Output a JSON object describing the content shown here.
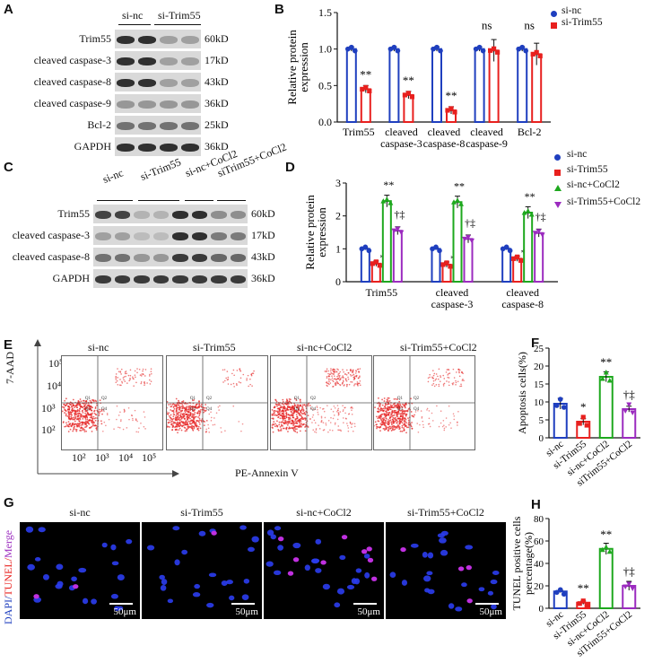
{
  "panels": {
    "A": "A",
    "B": "B",
    "C": "C",
    "D": "D",
    "E": "E",
    "F": "F",
    "G": "G",
    "H": "H"
  },
  "panel_a": {
    "groups": [
      "si-nc",
      "si-Trim55"
    ],
    "rows": [
      {
        "label": "Trim55",
        "kd": "60kD"
      },
      {
        "label": "cleaved caspase-3",
        "kd": "17kD"
      },
      {
        "label": "cleaved caspase-8",
        "kd": "43kD"
      },
      {
        "label": "cleaved caspase-9",
        "kd": "36kD"
      },
      {
        "label": "Bcl-2",
        "kd": "25kD"
      },
      {
        "label": "GAPDH",
        "kd": "36kD"
      }
    ]
  },
  "panel_c": {
    "groups": [
      "si-nc",
      "si-Trim55",
      "si-nc+CoCl2",
      "siTrim55+CoCl2"
    ],
    "rows": [
      {
        "label": "Trim55",
        "kd": "60kD"
      },
      {
        "label": "cleaved caspase-3",
        "kd": "17kD"
      },
      {
        "label": "cleaved caspase-8",
        "kd": "43kD"
      },
      {
        "label": "GAPDH",
        "kd": "36kD"
      }
    ]
  },
  "panel_e": {
    "titles": [
      "si-nc",
      "si-Trim55",
      "si-nc+CoCl2",
      "si-Trim55+CoCl2"
    ],
    "ylabel": "7-AAD",
    "xlabel": "PE-Annexin V",
    "yticks": [
      "10⁵",
      "10⁴",
      "10³",
      "10²"
    ],
    "xticks": [
      "10²",
      "10³",
      "10⁴",
      "10⁵"
    ],
    "quadrants": [
      "Q1",
      "Q2",
      "Q3",
      "Q4"
    ]
  },
  "panel_g": {
    "titles": [
      "si-nc",
      "si-Trim55",
      "si-nc+CoCl2",
      "si-Trim55+CoCl2"
    ],
    "ylabel_dapi": "DAPI/",
    "ylabel_tunel": "TUNEL/",
    "ylabel_merge": "Merge",
    "scale": "50μm"
  },
  "colors": {
    "si_nc": "#1f3fbf",
    "si_trim55": "#e8201e",
    "si_nc_cocl2": "#1ea81e",
    "si_trim55_cocl2": "#9b2bbf"
  },
  "chart_data": [
    {
      "id": "B",
      "type": "bar",
      "ylabel": "Relative protein expression",
      "ylim": [
        0,
        1.5
      ],
      "yticks": [
        "0.0",
        "0.5",
        "1.0",
        "1.5"
      ],
      "categories": [
        "Trim55",
        "cleaved caspase-3",
        "cleaved caspase-8",
        "cleaved caspase-9",
        "Bcl-2"
      ],
      "series": [
        {
          "name": "si-nc",
          "values": [
            1.0,
            1.0,
            1.0,
            1.0,
            1.0
          ]
        },
        {
          "name": "si-Trim55",
          "values": [
            0.45,
            0.37,
            0.16,
            0.98,
            0.93
          ]
        }
      ],
      "annotations": [
        "**",
        "**",
        "**",
        "ns",
        "ns"
      ]
    },
    {
      "id": "D",
      "type": "bar",
      "ylabel": "Relative protein expression",
      "ylim": [
        0,
        3
      ],
      "yticks": [
        "0",
        "1",
        "2",
        "3"
      ],
      "categories": [
        "Trim55",
        "cleaved caspase-3",
        "cleaved caspase-8"
      ],
      "series": [
        {
          "name": "si-nc",
          "values": [
            1.0,
            1.0,
            1.0
          ]
        },
        {
          "name": "si-Trim55",
          "values": [
            0.55,
            0.52,
            0.7
          ]
        },
        {
          "name": "si-nc+CoCl2",
          "values": [
            2.45,
            2.42,
            2.1
          ]
        },
        {
          "name": "si-Trim55+CoCl2",
          "values": [
            1.55,
            1.3,
            1.48
          ]
        }
      ],
      "annotations": [
        [
          "",
          "**",
          "**",
          "†‡"
        ],
        [
          "",
          "**",
          "**",
          "†‡"
        ],
        [
          "",
          "**",
          "**",
          "†‡"
        ]
      ]
    },
    {
      "id": "F",
      "type": "bar",
      "ylabel": "Apoptosis cells(%)",
      "ylim": [
        0,
        25
      ],
      "yticks": [
        "0",
        "5",
        "10",
        "15",
        "20",
        "25"
      ],
      "categories": [
        "si-nc",
        "si-Trim55",
        "si-nc+CoCl2",
        "siTrim55+CoCl2"
      ],
      "values": [
        9.5,
        4.5,
        17.0,
        8.0
      ],
      "annotations": [
        "",
        "*",
        "**",
        "†‡"
      ]
    },
    {
      "id": "H",
      "type": "bar",
      "ylabel": "TUNEL positive cells percentage(%)",
      "ylim": [
        0,
        80
      ],
      "yticks": [
        "0",
        "20",
        "40",
        "60",
        "80"
      ],
      "categories": [
        "si-nc",
        "si-Trim55",
        "si-nc+CoCl2",
        "siTrim55+CoCl2"
      ],
      "values": [
        15,
        5,
        53,
        20
      ],
      "annotations": [
        "",
        "**",
        "**",
        "†‡"
      ]
    }
  ]
}
